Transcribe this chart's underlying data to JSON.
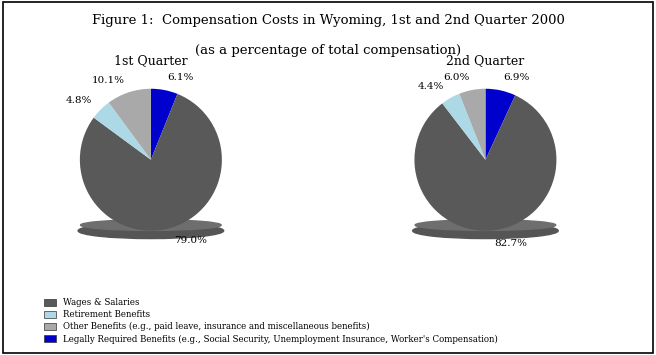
{
  "title_line1": "Figure 1:  Compensation Costs in Wyoming, 1st and 2nd Quarter 2000",
  "title_line2": "(as a percentage of total compensation)",
  "q1_label": "1st Quarter",
  "q2_label": "2nd Quarter",
  "q1_values": [
    79.0,
    4.8,
    10.1,
    6.1
  ],
  "q2_values": [
    82.7,
    4.4,
    6.0,
    6.9
  ],
  "pct_labels_q1": [
    "79.0%",
    "4.8%",
    "10.1%",
    "6.1%"
  ],
  "pct_labels_q2": [
    "82.7%",
    "4.4%",
    "6.0%",
    "6.9%"
  ],
  "colors": [
    "#595959",
    "#add8e6",
    "#a9a9a9",
    "#0000cc"
  ],
  "legend_labels": [
    "Wages & Salaries",
    "Retirement Benefits",
    "Other Benefits (e.g., paid leave, insurance and miscellaneous benefits)",
    "Legally Required Benefits (e.g., Social Security, Unemployment Insurance, Worker's Compensation)"
  ],
  "background_color": "#ffffff"
}
